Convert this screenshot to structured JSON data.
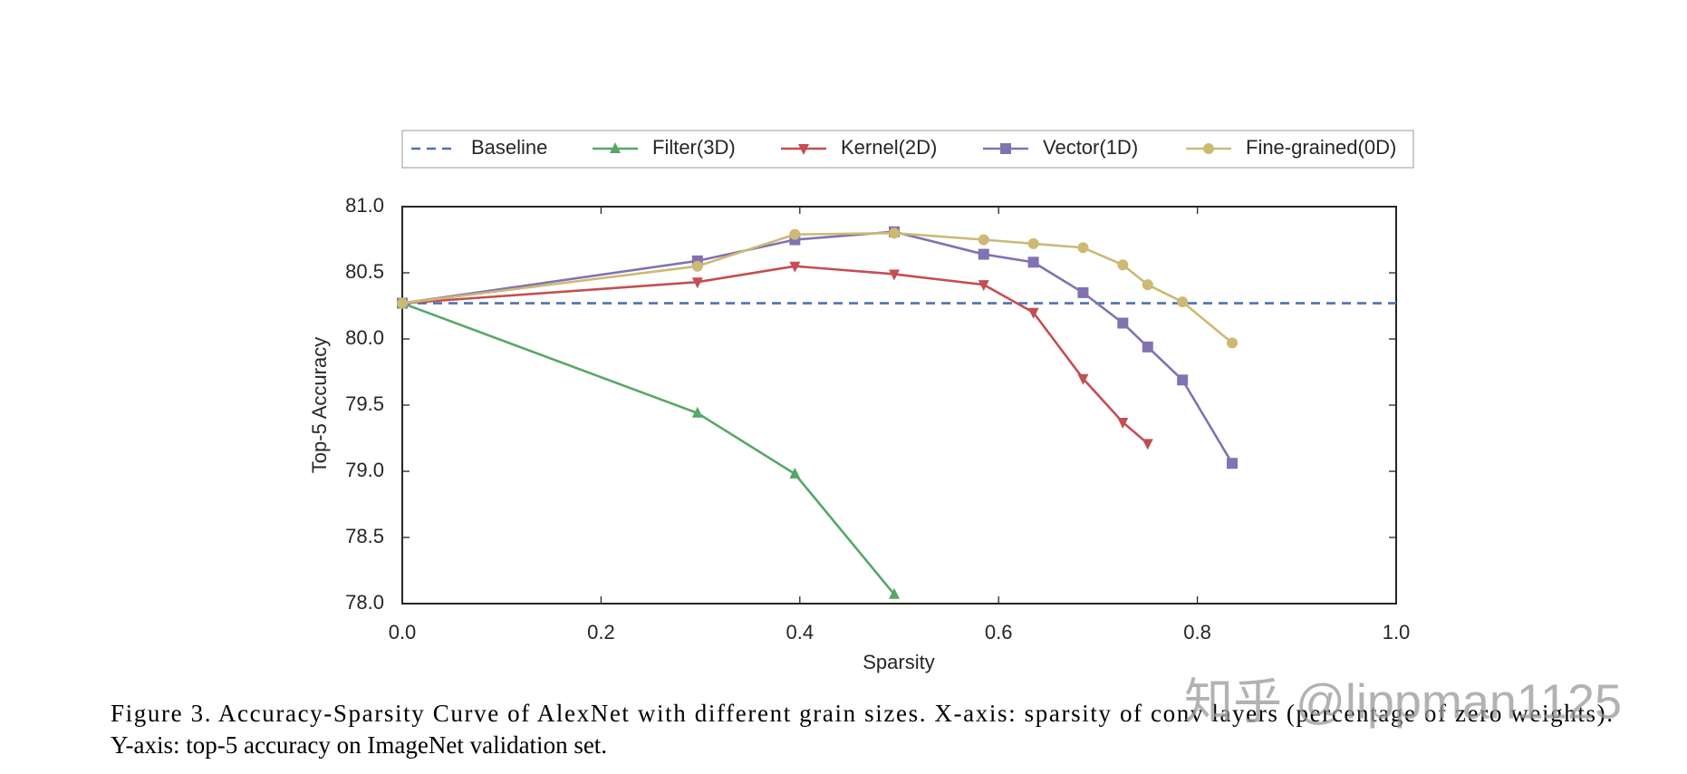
{
  "chart_data": {
    "type": "line",
    "xlabel": "Sparsity",
    "ylabel": "Top-5 Accuracy",
    "xlim": [
      0,
      1
    ],
    "ylim": [
      78,
      81
    ],
    "xticks": [
      {
        "value": 0,
        "label": "0.0"
      },
      0.2,
      0.4,
      0.6,
      0.8,
      {
        "value": 1,
        "label": "1.0"
      }
    ],
    "yticks": [
      {
        "value": 78,
        "label": "78.0"
      },
      78.5,
      {
        "value": 79,
        "label": "79.0"
      },
      79.5,
      {
        "value": 80,
        "label": "80.0"
      },
      80.5,
      {
        "value": 81,
        "label": "81.0"
      }
    ],
    "legend": "top-outside",
    "series": [
      {
        "name": "Baseline",
        "color": "#4c72b0",
        "linestyle": "dashed",
        "marker": "none",
        "x": [
          0,
          1
        ],
        "values": [
          80.27,
          80.27
        ]
      },
      {
        "name": "Filter(3D)",
        "color": "#55a868",
        "linestyle": "solid",
        "marker": "triangle-up",
        "x": [
          0,
          0.297,
          0.395,
          0.495
        ],
        "values": [
          80.27,
          79.44,
          78.98,
          78.07
        ]
      },
      {
        "name": "Kernel(2D)",
        "color": "#c44e52",
        "linestyle": "solid",
        "marker": "triangle-down",
        "x": [
          0,
          0.297,
          0.395,
          0.495,
          0.585,
          0.635,
          0.685,
          0.725,
          0.75
        ],
        "values": [
          80.27,
          80.43,
          80.55,
          80.49,
          80.41,
          80.2,
          79.7,
          79.37,
          79.21
        ]
      },
      {
        "name": "Vector(1D)",
        "color": "#8172b2",
        "linestyle": "solid",
        "marker": "square",
        "x": [
          0,
          0.297,
          0.395,
          0.495,
          0.585,
          0.635,
          0.685,
          0.725,
          0.75,
          0.785,
          0.835
        ],
        "values": [
          80.27,
          80.59,
          80.75,
          80.81,
          80.64,
          80.58,
          80.35,
          80.12,
          79.94,
          79.69,
          79.06
        ]
      },
      {
        "name": "Fine-grained(0D)",
        "color": "#ccb974",
        "linestyle": "solid",
        "marker": "circle",
        "x": [
          0,
          0.297,
          0.395,
          0.495,
          0.585,
          0.635,
          0.685,
          0.725,
          0.75,
          0.785,
          0.835
        ],
        "values": [
          80.27,
          80.55,
          80.79,
          80.8,
          80.75,
          80.72,
          80.69,
          80.56,
          80.41,
          80.28,
          79.97
        ]
      }
    ]
  },
  "caption": [
    "Figure 3. Accuracy-Sparsity Curve of AlexNet with different grain sizes. X-axis: sparsity of conv layers (percentage of zero weights).",
    "Y-axis: top-5 accuracy on ImageNet validation set."
  ],
  "watermark": "知乎 @lippman1125"
}
